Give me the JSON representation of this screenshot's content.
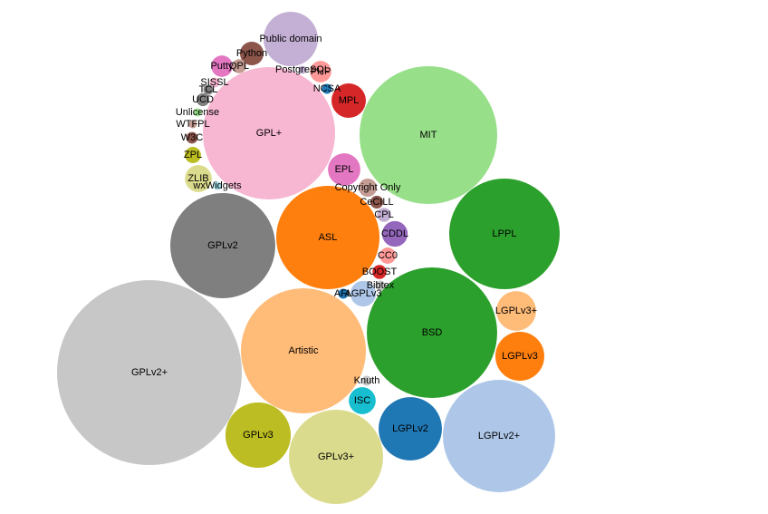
{
  "chart_data": {
    "type": "bubble",
    "categories": [
      "Public domain",
      "Python",
      "QPL",
      "Putty",
      "SISSL",
      "TCL",
      "UCD",
      "Unlicense",
      "WTFPL",
      "W3C",
      "ZPL",
      "ZLIB",
      "wxWidgets",
      "GPL+",
      "PostgreSQL",
      "PHP",
      "NCSA",
      "MPL",
      "MIT",
      "EPL",
      "Copyright Only",
      "CeCILL",
      "CPL",
      "CDDL",
      "CC0",
      "BOOST",
      "Bibtex",
      "AFL",
      "AGPLv3",
      "ASL",
      "GPLv2",
      "LPPL",
      "LGPLv3+",
      "LGPLv3",
      "BSD",
      "Artistic",
      "GPLv2+",
      "Knuth",
      "ISC",
      "LGPLv2",
      "LGPLv2+",
      "GPLv3",
      "GPLv3+"
    ],
    "values": [
      90,
      17,
      6,
      14,
      3,
      3,
      5,
      2,
      2,
      4,
      8,
      22,
      2,
      533,
      2,
      14,
      3,
      36,
      578,
      32,
      10,
      5,
      6,
      20,
      8,
      6,
      3,
      3,
      20,
      325,
      336,
      372,
      48,
      73,
      518,
      476,
      1040,
      3,
      22,
      122,
      384,
      130,
      270
    ],
    "colors": [
      "#c5b0d5",
      "#8c564b",
      "#c49c94",
      "#e377c2",
      "#f7b6d2",
      "#7f7f7f",
      "#7f7f7f",
      "#98df8a",
      "#c49c94",
      "#8c564b",
      "#bcbd22",
      "#dbdb8d",
      "#9edae5",
      "#f7b6d2",
      "#c5b0d5",
      "#ff9896",
      "#1f77b4",
      "#d62728",
      "#98df8a",
      "#e377c2",
      "#c49c94",
      "#8c564b",
      "#c5b0d5",
      "#9467bd",
      "#ff9896",
      "#d62728",
      "#c7c7c7",
      "#1f77b4",
      "#aec7e8",
      "#ff7f0e",
      "#7f7f7f",
      "#2ca02c",
      "#ffbb78",
      "#ff7f0e",
      "#2ca02c",
      "#ffbb78",
      "#c7c7c7",
      "#c7c7c7",
      "#17becf",
      "#1f77b4",
      "#aec7e8",
      "#bcbd22",
      "#dbdb8d"
    ]
  }
}
